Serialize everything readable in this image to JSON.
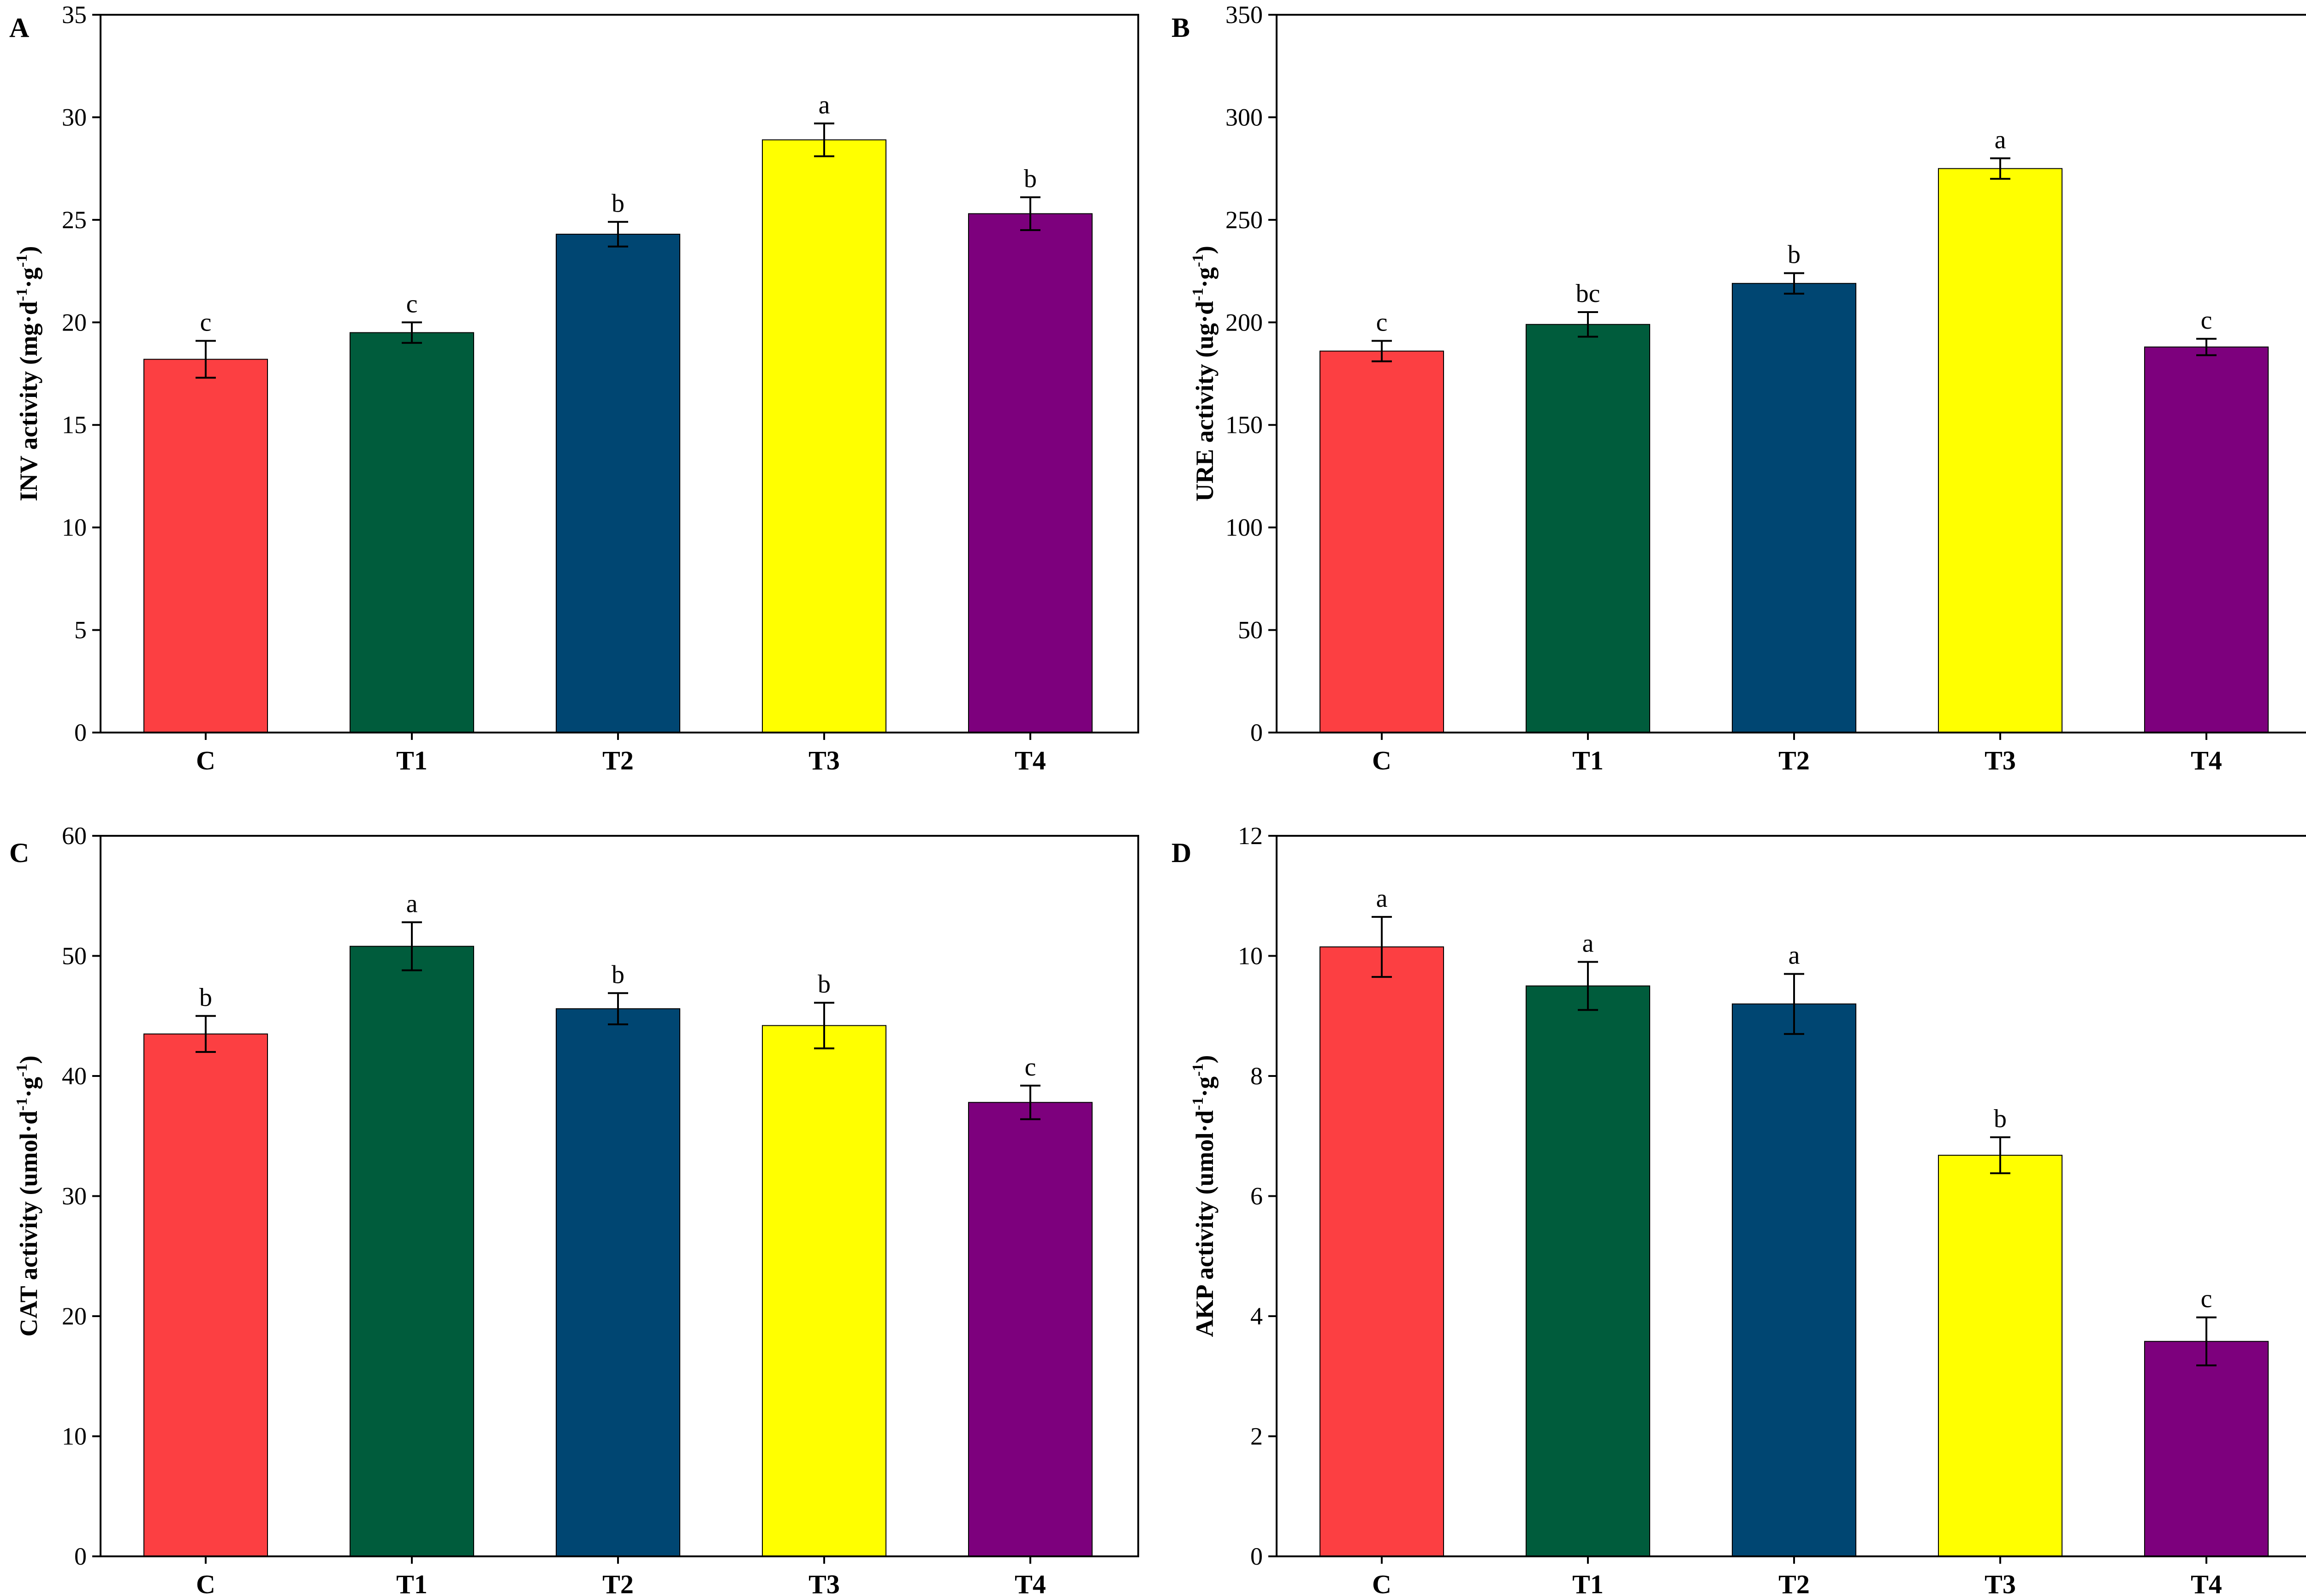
{
  "colors": {
    "C": "#fc3f42",
    "T1": "#005c3c",
    "T2": "#004672",
    "T3": "#ffff00",
    "T4": "#7d007d"
  },
  "chart_data": [
    {
      "panel": "A",
      "type": "bar",
      "categories": [
        "C",
        "T1",
        "T2",
        "T3",
        "T4"
      ],
      "values": [
        18.2,
        19.5,
        24.3,
        28.9,
        25.3
      ],
      "errors": [
        0.9,
        0.5,
        0.6,
        0.8,
        0.8
      ],
      "significance": [
        "c",
        "c",
        "b",
        "a",
        "b"
      ],
      "ylabel": {
        "base": "INV activity (mg·d",
        "sup1": "-1",
        "mid": "·g",
        "sup2": "-1",
        "end": ")"
      },
      "ylim": [
        0,
        35
      ],
      "yticks": [
        "0",
        "5",
        "10",
        "15",
        "20",
        "25",
        "30",
        "35"
      ]
    },
    {
      "panel": "B",
      "type": "bar",
      "categories": [
        "C",
        "T1",
        "T2",
        "T3",
        "T4"
      ],
      "values": [
        186,
        199,
        219,
        275,
        188
      ],
      "errors": [
        5,
        6,
        5,
        5,
        4
      ],
      "significance": [
        "c",
        "bc",
        "b",
        "a",
        "c"
      ],
      "ylabel": {
        "base": "URE activity (ug·d",
        "sup1": "-1",
        "mid": "·g",
        "sup2": "-1",
        "end": ")"
      },
      "ylim": [
        0,
        350
      ],
      "yticks": [
        "0",
        "50",
        "100",
        "150",
        "200",
        "250",
        "300",
        "350"
      ]
    },
    {
      "panel": "C",
      "type": "bar",
      "categories": [
        "C",
        "T1",
        "T2",
        "T3",
        "T4"
      ],
      "values": [
        43.5,
        50.8,
        45.6,
        44.2,
        37.8
      ],
      "errors": [
        1.5,
        2.0,
        1.3,
        1.9,
        1.4
      ],
      "significance": [
        "b",
        "a",
        "b",
        "b",
        "c"
      ],
      "ylabel": {
        "base": "CAT activity (umol·d",
        "sup1": "-1",
        "mid": "·g",
        "sup2": "-1",
        "end": ")"
      },
      "ylim": [
        0,
        60
      ],
      "yticks": [
        "0",
        "10",
        "20",
        "30",
        "40",
        "50",
        "60"
      ]
    },
    {
      "panel": "D",
      "type": "bar",
      "categories": [
        "C",
        "T1",
        "T2",
        "T3",
        "T4"
      ],
      "values": [
        10.15,
        9.5,
        9.2,
        6.68,
        3.58
      ],
      "errors": [
        0.5,
        0.4,
        0.5,
        0.3,
        0.4
      ],
      "significance": [
        "a",
        "a",
        "a",
        "b",
        "c"
      ],
      "ylabel": {
        "base": "AKP activity (umol·d",
        "sup1": "-1",
        "mid": "·g",
        "sup2": "-1",
        "end": ")"
      },
      "ylim": [
        0,
        12
      ],
      "yticks": [
        "0",
        "2",
        "4",
        "6",
        "8",
        "10",
        "12"
      ]
    }
  ]
}
